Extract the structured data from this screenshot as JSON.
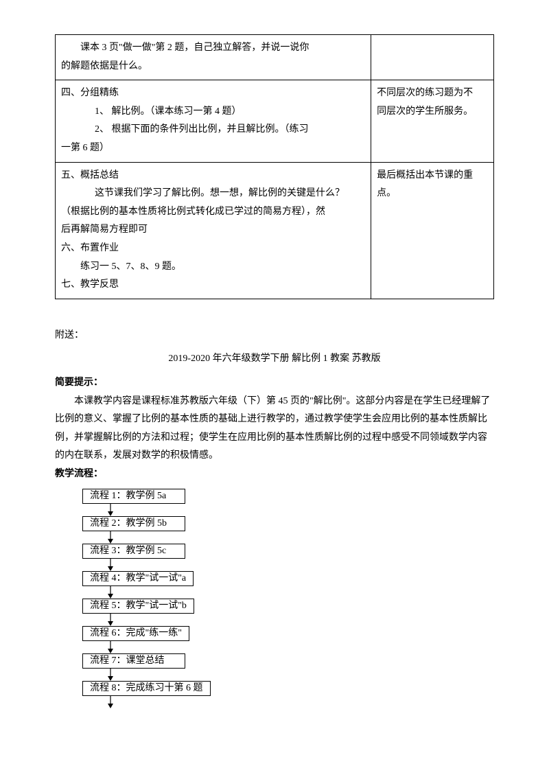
{
  "table": {
    "rows": [
      {
        "left_lines": [
          {
            "cls": "indent1",
            "text": "课本 3 页\"做一做\"第 2 题，自己独立解答，并说一说你"
          },
          {
            "cls": "",
            "text": "的解题依据是什么。"
          }
        ],
        "right_lines": []
      },
      {
        "left_lines": [
          {
            "cls": "",
            "text": "四、分组精练"
          },
          {
            "cls": "indent2",
            "text": "1、 解比例。（课本练习一第 4 题）"
          },
          {
            "cls": "indent2",
            "text": "2、 根据下面的条件列出比例，并且解比例。（练习"
          },
          {
            "cls": "",
            "text": "一第 6 题）"
          }
        ],
        "right_lines": [
          {
            "cls": "",
            "text": "不同层次的练习题为不"
          },
          {
            "cls": "",
            "text": "同层次的学生所服务。"
          }
        ]
      },
      {
        "left_lines": [
          {
            "cls": "",
            "text": "五、概括总结"
          },
          {
            "cls": "indent2",
            "text": "这节课我们学习了解比例。想一想，解比例的关键是什么？"
          },
          {
            "cls": "",
            "text": "（根据比例的基本性质将比例式转化成已学过的简易方程），然"
          },
          {
            "cls": "",
            "text": "后再解简易方程即可"
          },
          {
            "cls": "",
            "text": "六、布置作业"
          },
          {
            "cls": "indent1",
            "text": "练习一 5、7、8、9 题。"
          },
          {
            "cls": "",
            "text": "七、教学反思"
          }
        ],
        "right_lines": [
          {
            "cls": "",
            "text": "最后概括出本节课的重"
          },
          {
            "cls": "",
            "text": "点。"
          }
        ]
      }
    ]
  },
  "appendix": {
    "label": "附送：",
    "title": "2019-2020 年六年级数学下册 解比例 1 教案 苏教版",
    "section1_title": "简要提示：",
    "section1_body": "本课教学内容是课程标准苏教版六年级（下）第 45 页的\"解比例\"。这部分内容是在学生已经理解了比例的意义、掌握了比例的基本性质的基础上进行教学的，通过教学使学生会应用比例的基本性质解比例，并掌握解比例的方法和过程；使学生在应用比例的基本性质解比例的过程中感受不同领域数学内容的内在联系，发展对数学的积极情感。",
    "section2_title": "教学流程："
  },
  "flow": {
    "steps": [
      "流程 1：教学例 5a",
      "流程 2：教学例 5b",
      "流程 3：教学例 5c",
      "流程 4：教学\"试一试\"a",
      "流程 5：教学\"试一试\"b",
      "流程 6：完成\"练一练\"",
      "流程 7：课堂总结",
      "流程 8：完成练习十第 6 题"
    ],
    "arrow_color": "#000000",
    "box_border": "#000000"
  }
}
